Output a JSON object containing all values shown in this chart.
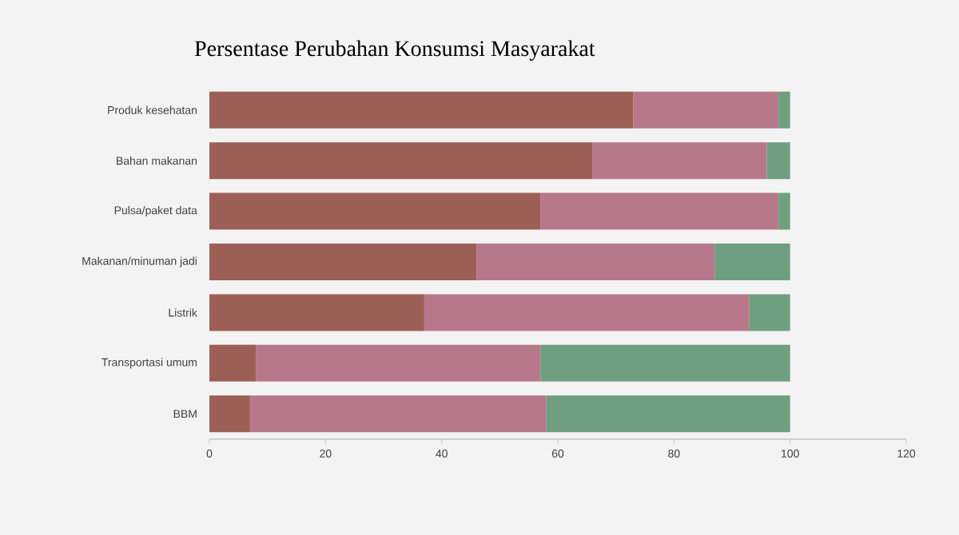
{
  "chart_data": {
    "type": "bar",
    "title": "Persentase Perubahan Konsumsi Masyarakat",
    "orientation": "horizontal",
    "stacked": true,
    "categories": [
      "Produk kesehatan",
      "Bahan makanan",
      "Pulsa/paket data",
      "Makanan/minuman jadi",
      "Listrik",
      "Transportasi umum",
      "BBM"
    ],
    "series": [
      {
        "color": "#9c5f55",
        "values": [
          73,
          66,
          57,
          46,
          37,
          8,
          7
        ]
      },
      {
        "color": "#b8788c",
        "values": [
          25,
          30,
          41,
          41,
          56,
          49,
          51
        ]
      },
      {
        "color": "#6f9e80",
        "values": [
          2,
          4,
          2,
          13,
          7,
          43,
          42
        ]
      }
    ],
    "xlim": [
      0,
      120
    ],
    "xticks": [
      0,
      20,
      40,
      60,
      80,
      100,
      120
    ]
  }
}
